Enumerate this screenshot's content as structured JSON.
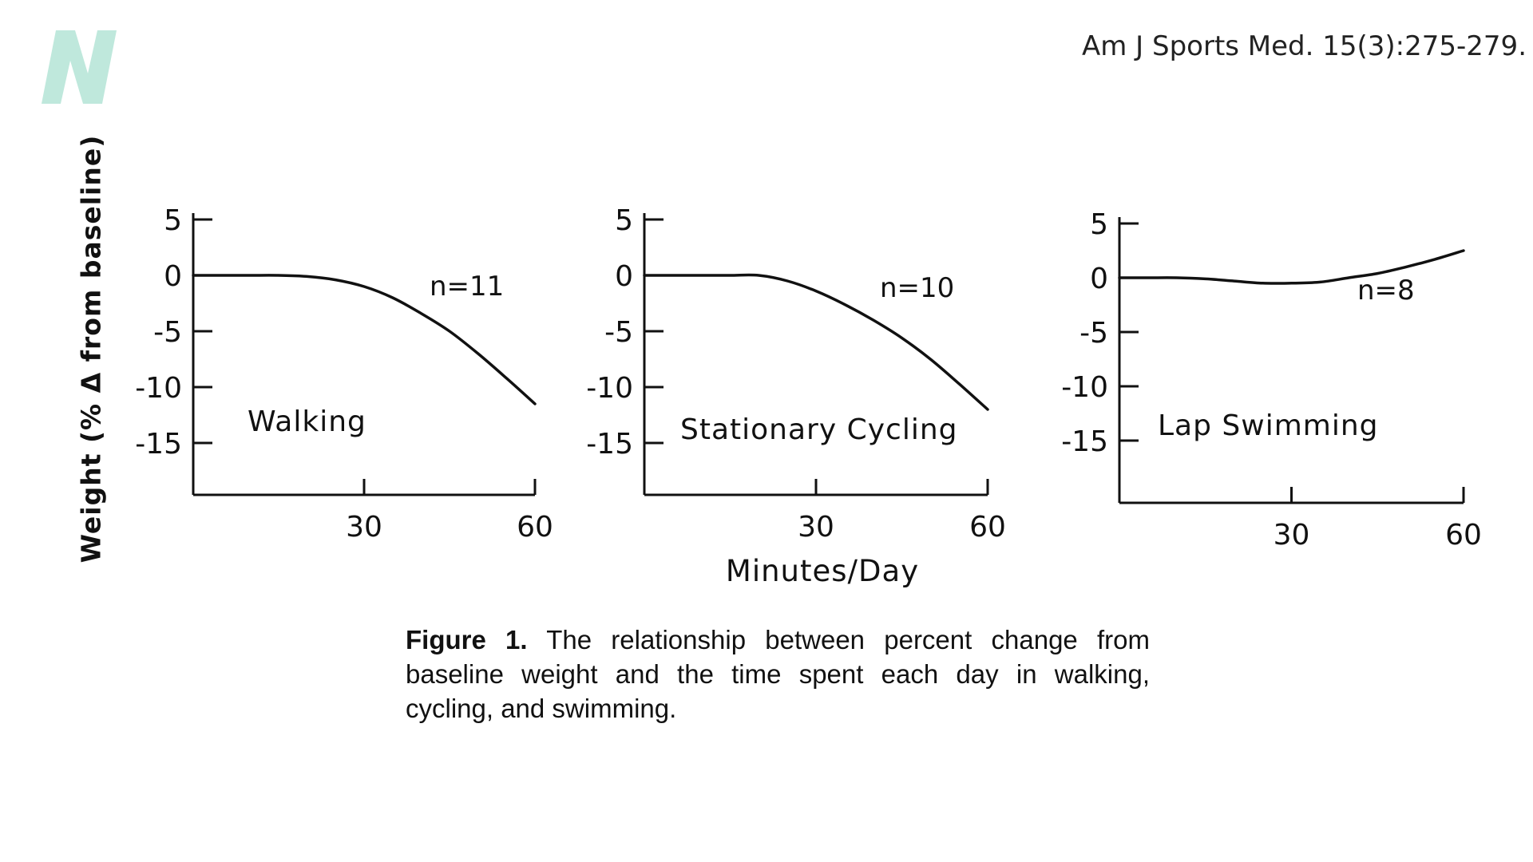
{
  "header": {
    "citation": "Am J Sports Med. 15(3):275-279.",
    "logo_letter": "N",
    "logo_color": "#bfe8dc"
  },
  "chart_data": {
    "type": "line",
    "ylabel": "Weight (% Δ from baseline)",
    "xlabel": "Minutes/Day",
    "y_ticks": [
      "5",
      "0",
      "-5",
      "-10",
      "-15"
    ],
    "x_ticks": [
      "30",
      "60"
    ],
    "xlim": [
      0,
      60
    ],
    "ylim": [
      -20,
      5
    ],
    "line_color": "#111111",
    "panels": [
      {
        "name": "Walking",
        "n_label": "n=11",
        "x": [
          0,
          5,
          10,
          15,
          20,
          25,
          30,
          35,
          40,
          45,
          50,
          55,
          60
        ],
        "y": [
          0,
          0,
          0,
          0,
          -0.1,
          -0.4,
          -1.0,
          -2.0,
          -3.4,
          -5.0,
          -7.0,
          -9.2,
          -11.5
        ]
      },
      {
        "name": "Stationary Cycling",
        "n_label": "n=10",
        "x": [
          0,
          5,
          10,
          15,
          20,
          25,
          30,
          35,
          40,
          45,
          50,
          55,
          60
        ],
        "y": [
          0,
          0,
          0,
          0,
          0,
          -0.5,
          -1.4,
          -2.6,
          -4.0,
          -5.6,
          -7.5,
          -9.7,
          -12.0
        ]
      },
      {
        "name": "Lap Swimming",
        "n_label": "n=8",
        "x": [
          0,
          5,
          10,
          15,
          20,
          25,
          30,
          35,
          40,
          45,
          50,
          55,
          60
        ],
        "y": [
          0,
          0,
          0,
          -0.1,
          -0.3,
          -0.5,
          -0.5,
          -0.4,
          0.0,
          0.4,
          1.0,
          1.7,
          2.5
        ]
      }
    ]
  },
  "caption": {
    "label": "Figure 1.",
    "text": "The relationship between percent change from baseline weight and the time spent each day in walking, cycling, and swimming."
  }
}
